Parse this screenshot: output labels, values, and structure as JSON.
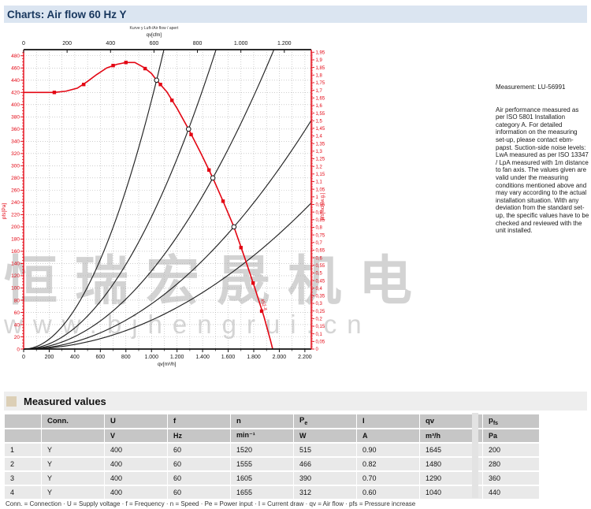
{
  "page": {
    "title": "Charts: Air flow 60 Hz Y"
  },
  "notes": {
    "measurement": "Measurement: LU-56991",
    "body": "Air performance measured as per ISO 5801 Installation category A. For detailed information on the measuring set-up, please contact ebm-papst. Suction-side noise levels: LwA measured as per ISO 13347 / LpA measured with 1m distance to fan axis. The values given are valid under the measuring conditions mentioned above and may vary according to the actual installation situation. With any deviation from the standard set-up, the specific values have to be checked and reviewed with the unit installed."
  },
  "watermark": {
    "line1": "恒瑞宏晟机电",
    "line2": "www.bjhengrui.cn"
  },
  "chart_data": {
    "type": "line",
    "colors": {
      "axis_red": "#e30613",
      "curve_red": "#e30613",
      "load_black": "#222222",
      "grid": "#b0b0b0"
    },
    "top_caption_line1": "Kurve y Luft-/Air flow / apert",
    "axes": {
      "top": {
        "label": "qv[cfm]",
        "range": [
          0,
          1324
        ],
        "ticks": [
          0,
          200,
          400,
          600,
          800,
          1000,
          1200
        ]
      },
      "bottom": {
        "label": "qv[m³/h]",
        "range": [
          0,
          2250
        ],
        "ticks": [
          0,
          200,
          400,
          600,
          800,
          1000,
          1200,
          1400,
          1600,
          1800,
          2000,
          2200
        ],
        "grid_step": 100
      },
      "left": {
        "label": "pfs[Pa]",
        "range": [
          0,
          490
        ],
        "ticks": [
          0,
          20,
          40,
          60,
          80,
          100,
          120,
          140,
          160,
          180,
          200,
          220,
          240,
          260,
          280,
          300,
          320,
          340,
          360,
          380,
          400,
          420,
          440,
          460,
          480
        ],
        "minor_step": 5,
        "grid_step": 20
      },
      "right": {
        "label": "pfs[inch w.g.]",
        "range": [
          0,
          1.967
        ],
        "ticks": [
          0,
          0.05,
          0.1,
          0.15,
          0.2,
          0.25,
          0.3,
          0.35,
          0.4,
          0.45,
          0.5,
          0.55,
          0.6,
          0.65,
          0.7,
          0.75,
          0.8,
          0.85,
          0.9,
          0.95,
          1,
          1.05,
          1.1,
          1.15,
          1.2,
          1.25,
          1.3,
          1.35,
          1.4,
          1.45,
          1.5,
          1.55,
          1.6,
          1.65,
          1.7,
          1.75,
          1.8,
          1.85,
          1.9,
          1.95
        ],
        "minor_step": 0.01
      }
    },
    "fan_curve": {
      "label": "452-4",
      "points": [
        [
          0,
          420
        ],
        [
          120,
          420
        ],
        [
          240,
          420
        ],
        [
          330,
          422
        ],
        [
          420,
          427
        ],
        [
          500,
          438
        ],
        [
          570,
          449
        ],
        [
          650,
          460
        ],
        [
          730,
          466
        ],
        [
          800,
          469
        ],
        [
          870,
          469
        ],
        [
          940,
          461
        ],
        [
          1000,
          451
        ],
        [
          1040,
          440
        ],
        [
          1120,
          421
        ],
        [
          1200,
          394
        ],
        [
          1290,
          360
        ],
        [
          1390,
          319
        ],
        [
          1480,
          280
        ],
        [
          1560,
          242
        ],
        [
          1645,
          200
        ],
        [
          1730,
          149
        ],
        [
          1810,
          99
        ],
        [
          1880,
          53
        ],
        [
          1930,
          15
        ],
        [
          1948,
          0
        ]
      ],
      "markers": [
        [
          240,
          420
        ],
        [
          470,
          433
        ],
        [
          700,
          464
        ],
        [
          800,
          469
        ],
        [
          950,
          459
        ],
        [
          1070,
          433
        ],
        [
          1160,
          407
        ],
        [
          1310,
          351
        ],
        [
          1450,
          293
        ],
        [
          1560,
          242
        ],
        [
          1700,
          166
        ],
        [
          1795,
          108
        ],
        [
          1862,
          62
        ]
      ]
    },
    "operating_points": [
      [
        1040,
        440
      ],
      [
        1290,
        360
      ],
      [
        1480,
        280
      ],
      [
        1645,
        200
      ]
    ],
    "load_curves": [
      {
        "through": [
          1040,
          440
        ]
      },
      {
        "through": [
          1290,
          360
        ]
      },
      {
        "through": [
          1480,
          280
        ]
      },
      {
        "through": [
          1645,
          200
        ]
      },
      {
        "through": [
          2400,
          272
        ]
      }
    ]
  },
  "measured_values": {
    "section_title": "Measured values",
    "headers": [
      {
        "base": "",
        "sub": ""
      },
      {
        "base": "Conn.",
        "sub": ""
      },
      {
        "base": "U",
        "sub": ""
      },
      {
        "base": "f",
        "sub": ""
      },
      {
        "base": "n",
        "sub": ""
      },
      {
        "base": "P",
        "sub": "e"
      },
      {
        "base": "I",
        "sub": ""
      },
      {
        "base": "qv",
        "sub": ""
      },
      {
        "base": "p",
        "sub": "fs"
      }
    ],
    "units": [
      "",
      "",
      "V",
      "Hz",
      "min⁻¹",
      "W",
      "A",
      "m³/h",
      "Pa"
    ],
    "rows": [
      [
        "1",
        "Y",
        "400",
        "60",
        "1520",
        "515",
        "0.90",
        "1645",
        "200"
      ],
      [
        "2",
        "Y",
        "400",
        "60",
        "1555",
        "466",
        "0.82",
        "1480",
        "280"
      ],
      [
        "3",
        "Y",
        "400",
        "60",
        "1605",
        "390",
        "0.70",
        "1290",
        "360"
      ],
      [
        "4",
        "Y",
        "400",
        "60",
        "1655",
        "312",
        "0.60",
        "1040",
        "440"
      ]
    ],
    "footnote": "Conn. = Connection · U = Supply voltage · f = Frequency · n = Speed · Pe = Power input · I = Current draw · qv = Air flow · pfs = Pressure increase"
  }
}
